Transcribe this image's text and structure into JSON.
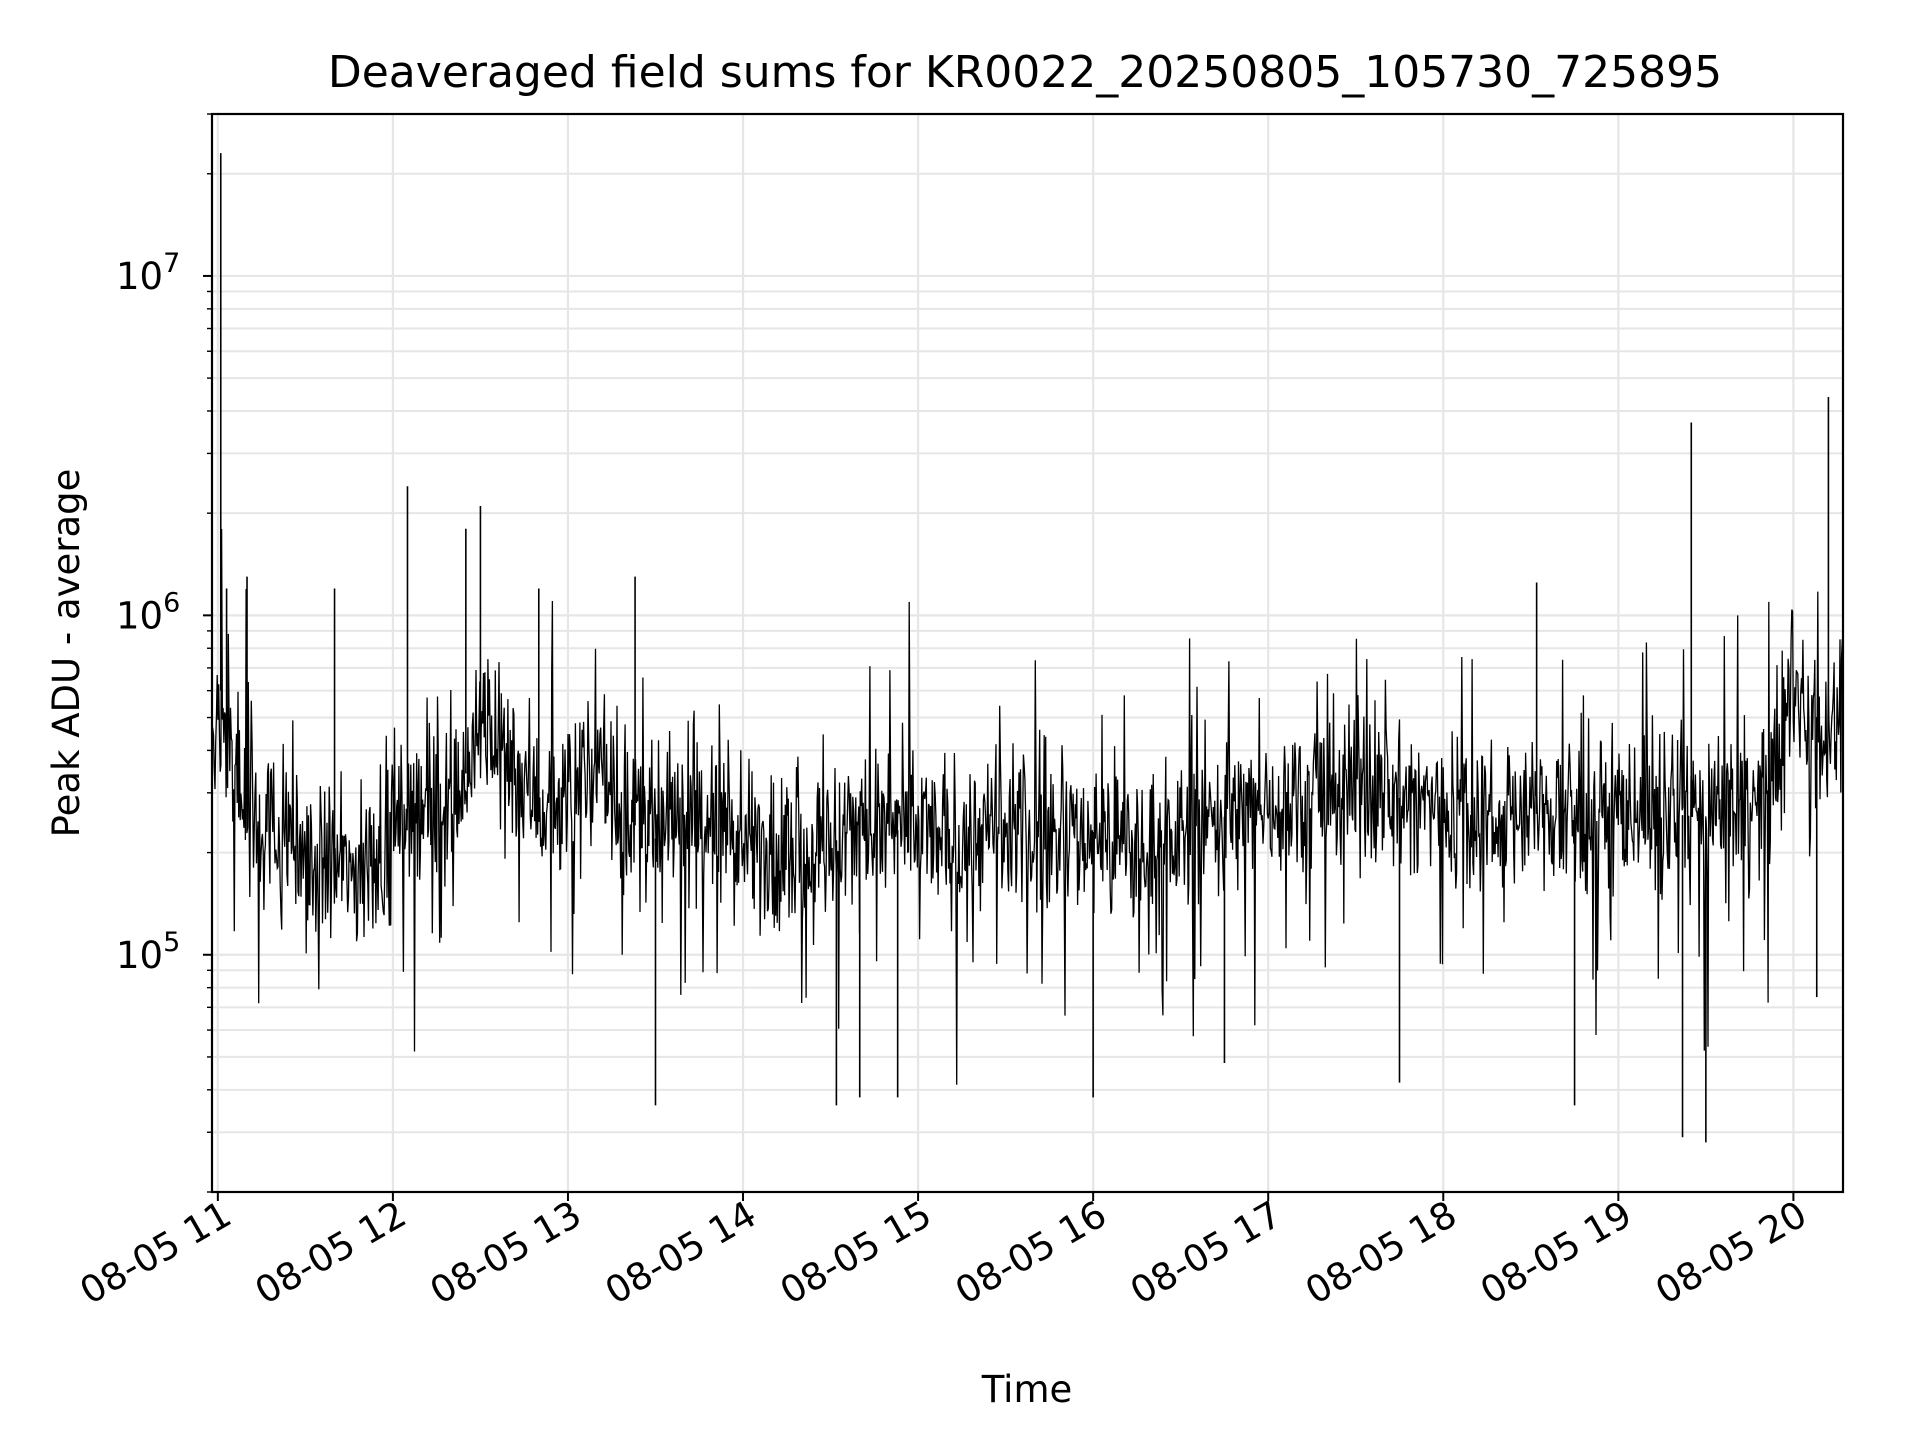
{
  "chart_data": {
    "type": "line",
    "title": "Deaveraged field sums for KR0022_20250805_105730_725895",
    "xlabel": "Time",
    "ylabel": "Peak ADU - average",
    "x_range": [
      "2025-08-05T10:58",
      "2025-08-05T20:17"
    ],
    "ylim": [
      20000,
      30000000
    ],
    "y_scale": "log",
    "grid": true,
    "legend": "none",
    "line_color": "#000000",
    "grid_color": "#e6e6e6",
    "x_ticks": [
      "08-05 11",
      "08-05 12",
      "08-05 13",
      "08-05 14",
      "08-05 15",
      "08-05 16",
      "08-05 17",
      "08-05 18",
      "08-05 19",
      "08-05 20"
    ],
    "y_ticks": [
      {
        "value": 100000,
        "base": "10",
        "exp": "5"
      },
      {
        "value": 1000000,
        "base": "10",
        "exp": "6"
      },
      {
        "value": 10000000,
        "base": "10",
        "exp": "7"
      }
    ],
    "series": [
      {
        "x": [
          "2025-08-05T10:58",
          "2025-08-05T11:01",
          "2025-08-05T11:05",
          "2025-08-05T11:10",
          "2025-08-05T11:15",
          "2025-08-05T11:20",
          "2025-08-05T11:30",
          "2025-08-05T11:40",
          "2025-08-05T11:50",
          "2025-08-05T12:00",
          "2025-08-05T12:10",
          "2025-08-05T12:20",
          "2025-08-05T12:30",
          "2025-08-05T12:40",
          "2025-08-05T12:50",
          "2025-08-05T13:00",
          "2025-08-05T13:10",
          "2025-08-05T13:20",
          "2025-08-05T13:30",
          "2025-08-05T13:40",
          "2025-08-05T13:50",
          "2025-08-05T14:00",
          "2025-08-05T14:10",
          "2025-08-05T14:20",
          "2025-08-05T14:30",
          "2025-08-05T14:40",
          "2025-08-05T14:50",
          "2025-08-05T15:00",
          "2025-08-05T15:10",
          "2025-08-05T15:20",
          "2025-08-05T15:30",
          "2025-08-05T15:40",
          "2025-08-05T15:50",
          "2025-08-05T16:00",
          "2025-08-05T16:10",
          "2025-08-05T16:20",
          "2025-08-05T16:30",
          "2025-08-05T16:40",
          "2025-08-05T16:50",
          "2025-08-05T17:00",
          "2025-08-05T17:10",
          "2025-08-05T17:20",
          "2025-08-05T17:30",
          "2025-08-05T17:40",
          "2025-08-05T17:50",
          "2025-08-05T18:00",
          "2025-08-05T18:10",
          "2025-08-05T18:20",
          "2025-08-05T18:30",
          "2025-08-05T18:40",
          "2025-08-05T18:50",
          "2025-08-05T19:00",
          "2025-08-05T19:10",
          "2025-08-05T19:20",
          "2025-08-05T19:30",
          "2025-08-05T19:40",
          "2025-08-05T19:50",
          "2025-08-05T20:00",
          "2025-08-05T20:10",
          "2025-08-05T20:17"
        ],
        "y": [
          350000,
          600000,
          400000,
          300000,
          250000,
          220000,
          200000,
          180000,
          170000,
          250000,
          300000,
          260000,
          450000,
          400000,
          280000,
          300000,
          350000,
          250000,
          220000,
          260000,
          240000,
          220000,
          200000,
          200000,
          210000,
          250000,
          230000,
          240000,
          210000,
          230000,
          220000,
          240000,
          220000,
          230000,
          210000,
          200000,
          220000,
          260000,
          250000,
          280000,
          300000,
          300000,
          310000,
          300000,
          280000,
          280000,
          270000,
          260000,
          260000,
          260000,
          250000,
          270000,
          280000,
          260000,
          250000,
          270000,
          280000,
          600000,
          480000,
          500000
        ]
      }
    ],
    "noise_half_width_decades": 0.22,
    "spikes": [
      {
        "x": "2025-08-05T11:01",
        "y": 23000000
      },
      {
        "x": "2025-08-05T11:03",
        "y": 1200000
      },
      {
        "x": "2025-08-05T11:10",
        "y": 1300000
      },
      {
        "x": "2025-08-05T11:40",
        "y": 1200000
      },
      {
        "x": "2025-08-05T12:05",
        "y": 2400000
      },
      {
        "x": "2025-08-05T12:30",
        "y": 2100000
      },
      {
        "x": "2025-08-05T12:25",
        "y": 1800000
      },
      {
        "x": "2025-08-05T12:50",
        "y": 1200000
      },
      {
        "x": "2025-08-05T13:23",
        "y": 1300000
      },
      {
        "x": "2025-08-05T13:30",
        "y": 36000
      },
      {
        "x": "2025-08-05T14:32",
        "y": 36000
      },
      {
        "x": "2025-08-05T14:40",
        "y": 38000
      },
      {
        "x": "2025-08-05T14:53",
        "y": 38000
      },
      {
        "x": "2025-08-05T16:00",
        "y": 38000
      },
      {
        "x": "2025-08-05T16:45",
        "y": 48000
      },
      {
        "x": "2025-08-05T17:45",
        "y": 42000
      },
      {
        "x": "2025-08-05T18:32",
        "y": 1250000
      },
      {
        "x": "2025-08-05T18:45",
        "y": 36000
      },
      {
        "x": "2025-08-05T19:22",
        "y": 29000
      },
      {
        "x": "2025-08-05T19:25",
        "y": 3700000
      },
      {
        "x": "2025-08-05T19:30",
        "y": 28000
      },
      {
        "x": "2025-08-05T20:08",
        "y": 75000
      },
      {
        "x": "2025-08-05T20:12",
        "y": 4400000
      }
    ]
  }
}
